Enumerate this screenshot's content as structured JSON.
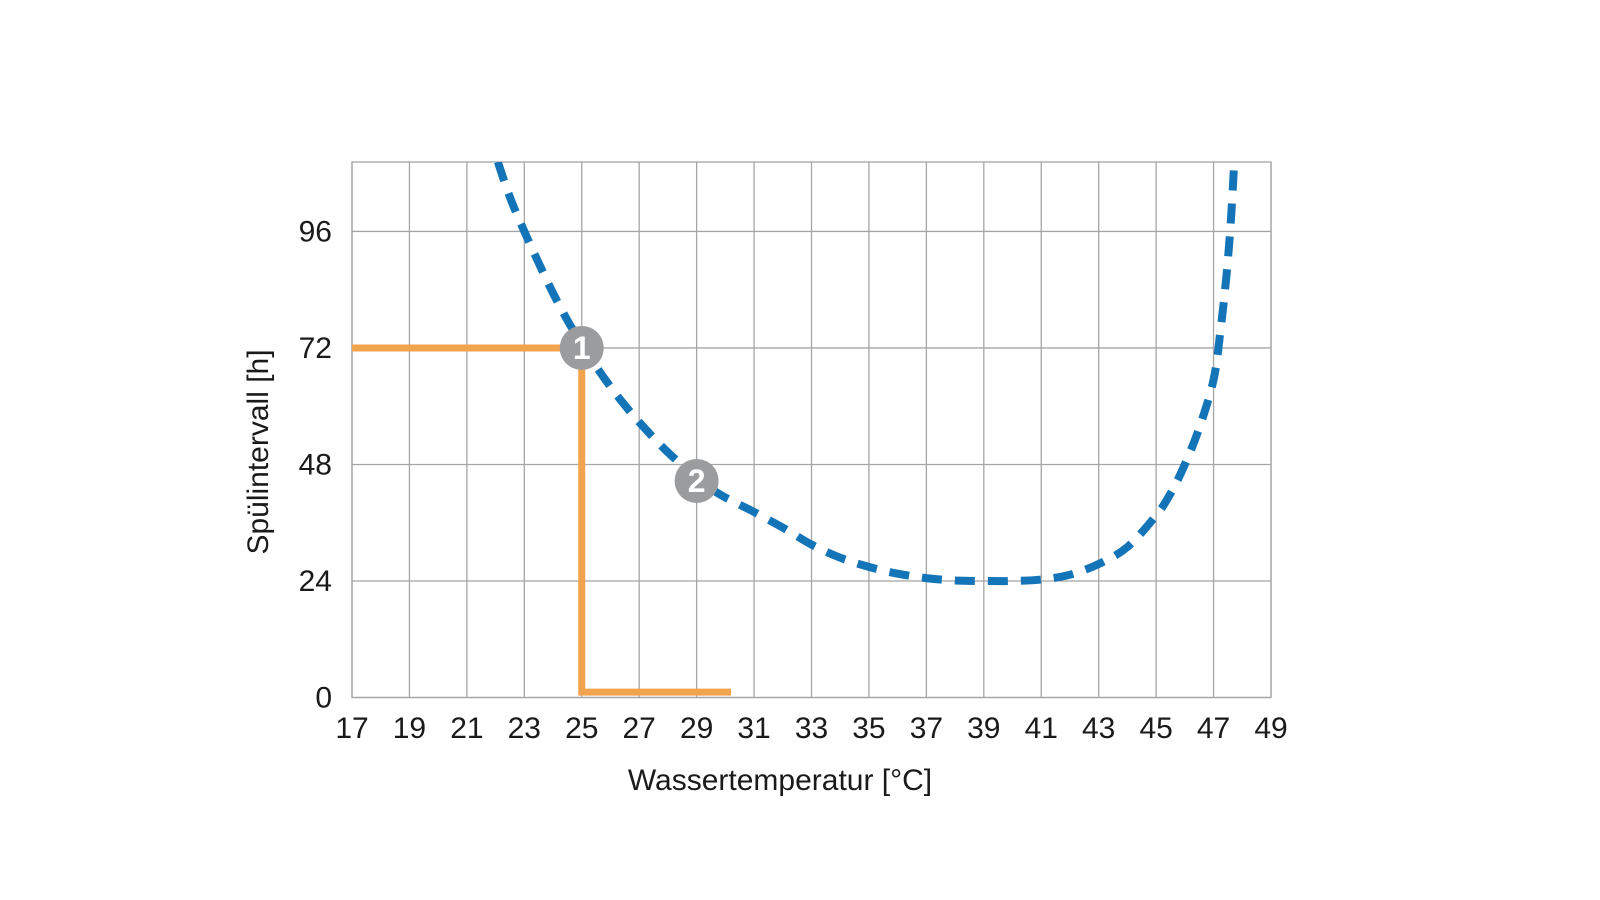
{
  "chart_data": {
    "type": "line",
    "title": "",
    "xlabel": "Wassertemperatur [°C]",
    "ylabel": "Spülintervall [h]",
    "xlim": [
      17,
      49
    ],
    "ylim": [
      0,
      110.3
    ],
    "grid": true,
    "legend_position": "none",
    "x_tick_labels": [
      "17",
      "19",
      "21",
      "23",
      "25",
      "27",
      "29",
      "31",
      "33",
      "35",
      "37",
      "39",
      "41",
      "43",
      "45",
      "47",
      "49"
    ],
    "x_tick_values": [
      17,
      19,
      21,
      23,
      25,
      27,
      29,
      31,
      33,
      35,
      37,
      39,
      41,
      43,
      45,
      47,
      49
    ],
    "y_tick_labels": [
      "0",
      "24",
      "48",
      "72",
      "96"
    ],
    "y_tick_values": [
      0,
      24,
      48,
      72,
      96
    ],
    "series": [
      {
        "role": "interval-curve",
        "style": "dashed",
        "color": "#1474B8",
        "points": [
          [
            22.08,
            110.3
          ],
          [
            22.5,
            103
          ],
          [
            23,
            96
          ],
          [
            23.5,
            89.5
          ],
          [
            24,
            83.3
          ],
          [
            24.5,
            77.7
          ],
          [
            25,
            72.8
          ],
          [
            25.5,
            68.2
          ],
          [
            26,
            64
          ],
          [
            26.5,
            60.2
          ],
          [
            27,
            56.7
          ],
          [
            27.5,
            53.5
          ],
          [
            28,
            50.5
          ],
          [
            28.5,
            47.8
          ],
          [
            29,
            45.3
          ],
          [
            29.5,
            43
          ],
          [
            30,
            41.2
          ],
          [
            31,
            38.2
          ],
          [
            32,
            35
          ],
          [
            33,
            31.5
          ],
          [
            34,
            28.8
          ],
          [
            35,
            26.9
          ],
          [
            36,
            25.5
          ],
          [
            37,
            24.6
          ],
          [
            38,
            24.1
          ],
          [
            39,
            24
          ],
          [
            40,
            24
          ],
          [
            41,
            24.3
          ],
          [
            42,
            25.3
          ],
          [
            43,
            27.5
          ],
          [
            44,
            31
          ],
          [
            45,
            37.5
          ],
          [
            45.5,
            42
          ],
          [
            46,
            48
          ],
          [
            46.5,
            55.5
          ],
          [
            47,
            65.5
          ],
          [
            47.25,
            76
          ],
          [
            47.45,
            87
          ],
          [
            47.6,
            98
          ],
          [
            47.72,
            110.3
          ]
        ]
      },
      {
        "role": "reading-aid-step",
        "style": "solid",
        "color": "#F2A34E",
        "points": [
          [
            17,
            72
          ],
          [
            25,
            72
          ],
          [
            25,
            1.1
          ],
          [
            30.2,
            1.1
          ]
        ]
      }
    ],
    "markers": [
      {
        "label": "1",
        "x": 25,
        "y": 72
      },
      {
        "label": "2",
        "x": 29,
        "y": 44.6
      }
    ],
    "colors": {
      "curve": "#1474B8",
      "reading_aid": "#F2A34E",
      "marker_fill": "#9B9C9E",
      "marker_text": "#FFFFFF",
      "grid": "#A5A5A5",
      "text": "#1A1A1A",
      "background": "#FFFFFF"
    }
  }
}
